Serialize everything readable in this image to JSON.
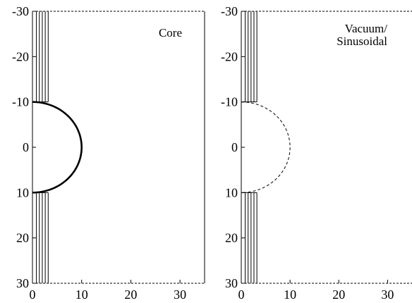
{
  "chart_data": [
    {
      "type": "line",
      "panel_label": "Core",
      "xlim": [
        0,
        35
      ],
      "ylim": [
        -30,
        30
      ],
      "y_inverted": true,
      "xticks": [
        0,
        10,
        20,
        30
      ],
      "xtick_labels": [
        "0",
        "10",
        "20",
        "30"
      ],
      "yticks": [
        -30,
        -20,
        -10,
        0,
        10,
        20,
        30
      ],
      "ytick_labels": [
        "-30",
        "-20",
        "-10",
        "0",
        "10",
        "20",
        "30"
      ],
      "boundary": {
        "shape": "semicircle",
        "center": [
          0,
          0
        ],
        "radius": 10,
        "line_style": "solid-thick"
      },
      "field_lines_x": [
        0.8,
        1.4,
        2.0,
        2.6,
        3.2
      ],
      "field_line_top_y": [
        -10,
        -10,
        -10,
        -10,
        -10
      ],
      "field_line_bottom_y": [
        10,
        10,
        10,
        10,
        10
      ],
      "grid": false,
      "legend": "none"
    },
    {
      "type": "line",
      "panel_label": "Vacuum/\nSinusoidal",
      "panel_label_lines": [
        "Vacuum/",
        "Sinusoidal"
      ],
      "xlim": [
        0,
        35
      ],
      "ylim": [
        -30,
        30
      ],
      "y_inverted": true,
      "xticks": [
        0,
        10,
        20,
        30
      ],
      "xtick_labels": [
        "0",
        "10",
        "20",
        "30"
      ],
      "yticks": [
        -30,
        -20,
        -10,
        0,
        10,
        20,
        30
      ],
      "ytick_labels": [
        "-30",
        "-20",
        "-10",
        "0",
        "10",
        "20",
        "30"
      ],
      "boundary": {
        "shape": "semicircle",
        "center": [
          0,
          0
        ],
        "radius": 10,
        "line_style": "dashed"
      },
      "field_lines_x": [
        0.8,
        1.4,
        2.0,
        2.6,
        3.2
      ],
      "field_line_top_y": [
        -10,
        -10,
        -10,
        -10,
        -10
      ],
      "field_line_bottom_y": [
        10,
        10,
        10,
        10,
        10
      ],
      "grid": false,
      "legend": "none"
    }
  ],
  "colors": {
    "axes": "#000000",
    "lines": "#000000",
    "background": "#ffffff"
  }
}
